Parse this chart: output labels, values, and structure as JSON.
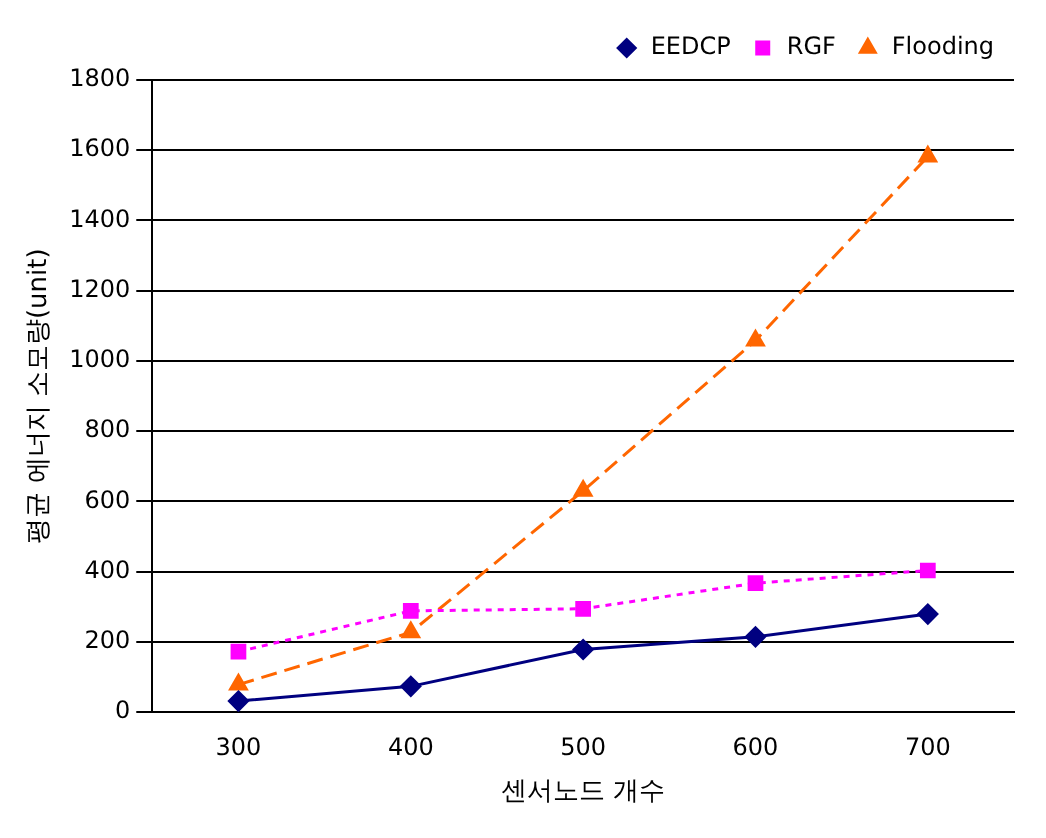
{
  "chart_data": {
    "type": "line",
    "xlabel": "센서노드 개수",
    "ylabel": "평균 에너지 소모량(unit)",
    "categories": [
      "300",
      "400",
      "500",
      "600",
      "700"
    ],
    "series": [
      {
        "name": "EEDCP",
        "color": "#000080",
        "values": [
          31,
          73,
          178,
          214,
          279
        ],
        "marker": "diamond",
        "line_style": "solid"
      },
      {
        "name": "RGF",
        "color": "#ff00ff",
        "values": [
          172,
          288,
          294,
          367,
          403
        ],
        "marker": "square",
        "line_style": "dotted"
      },
      {
        "name": "Flooding",
        "color": "#ff6600",
        "values": [
          78,
          227,
          630,
          1058,
          1582
        ],
        "marker": "triangle",
        "line_style": "dashed"
      }
    ],
    "ylim": [
      0,
      1800
    ],
    "yticks": [
      0,
      200,
      400,
      600,
      800,
      1000,
      1200,
      1400,
      1600,
      1800
    ],
    "grid": "y",
    "legend": "top"
  }
}
